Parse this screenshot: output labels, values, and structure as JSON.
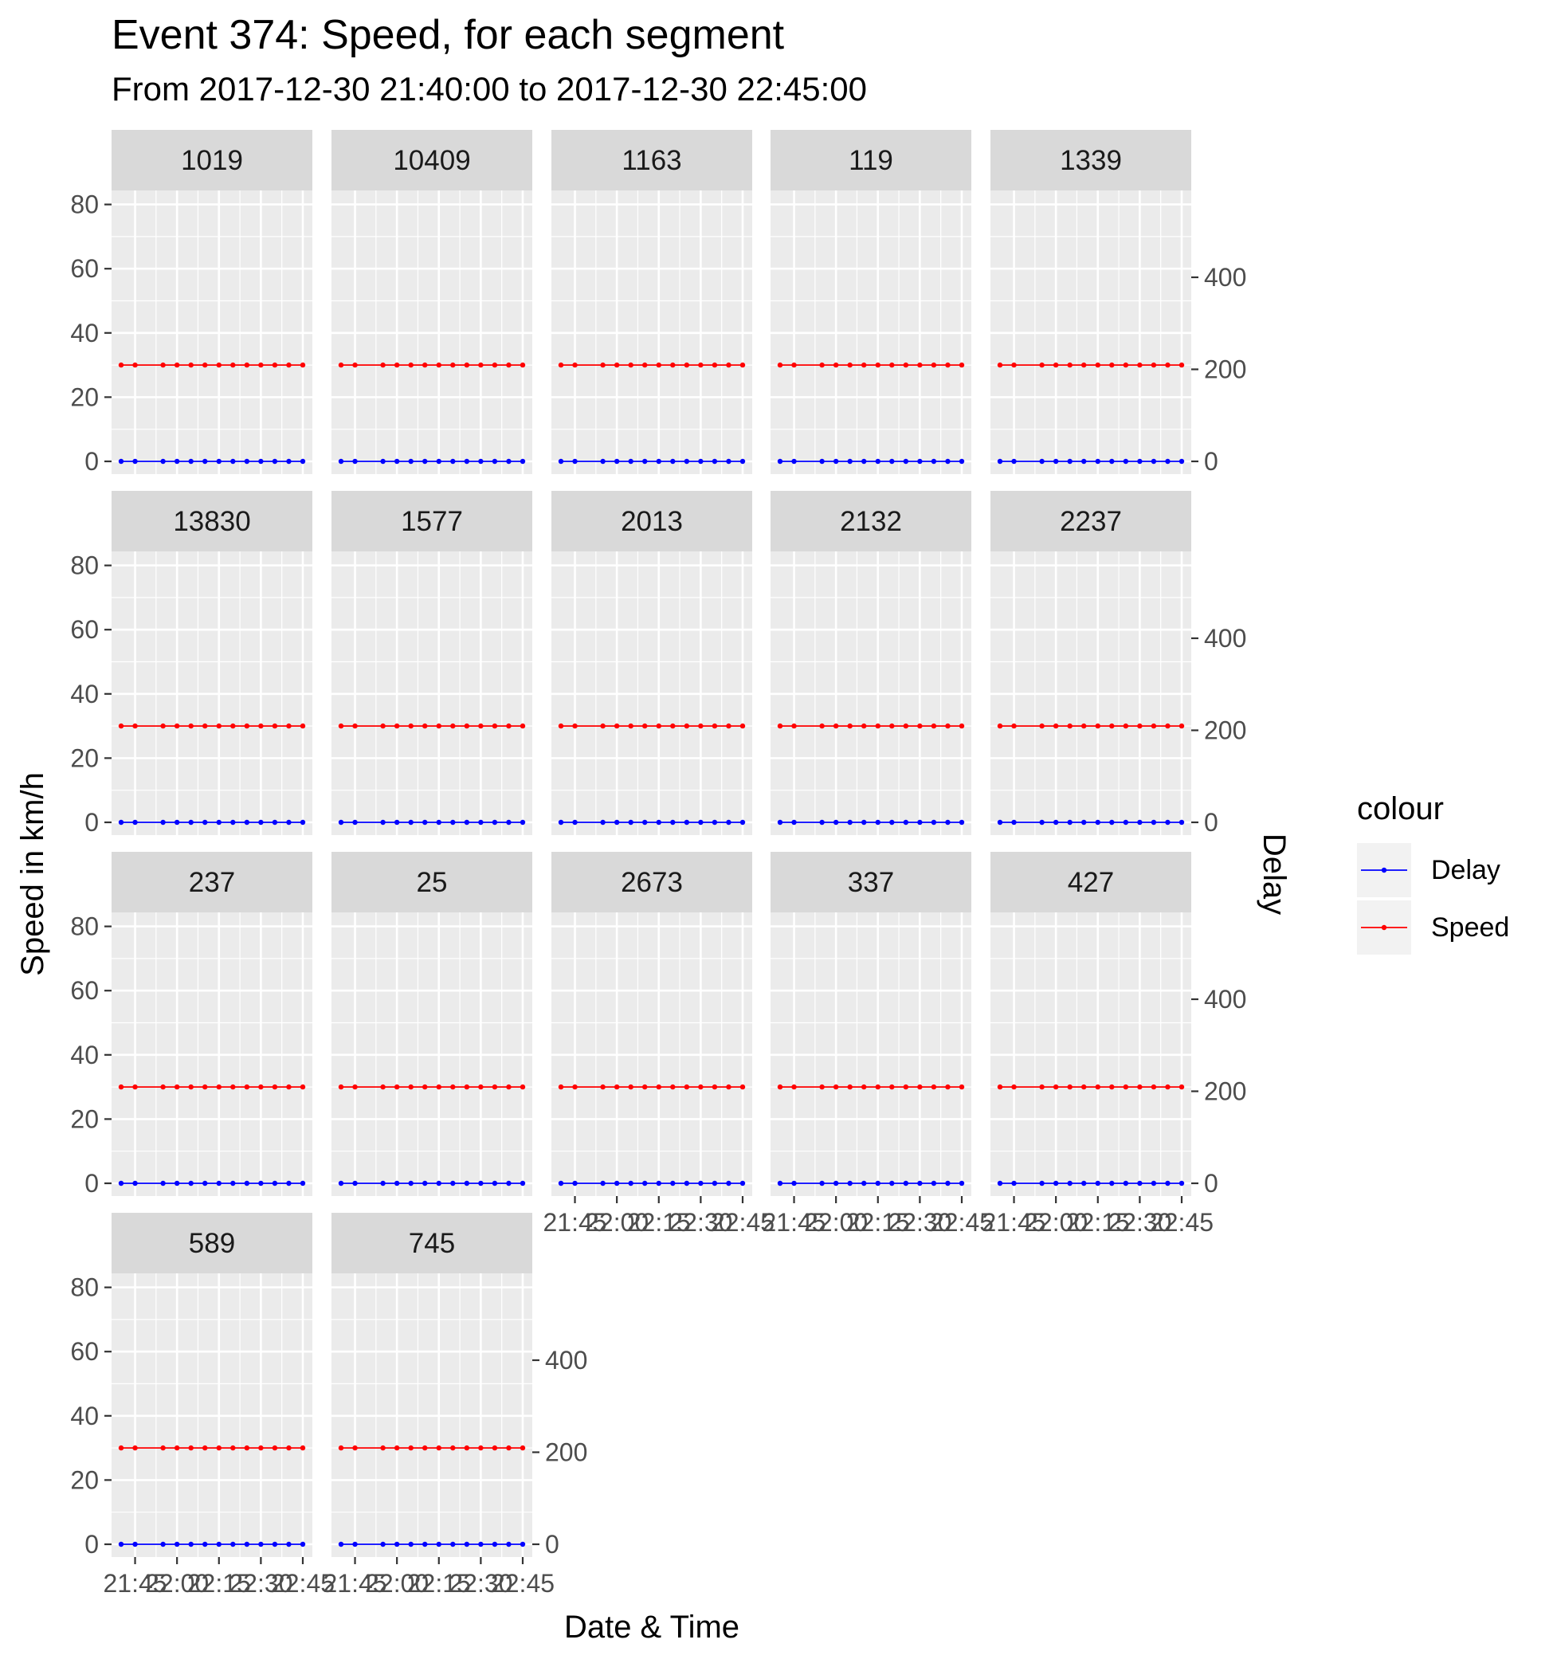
{
  "chart_data": {
    "type": "line",
    "title": "Event 374: Speed, for each segment",
    "subtitle": "From 2017-12-30 21:40:00 to 2017-12-30 22:45:00",
    "xlabel": "Date & Time",
    "ylabel": "Speed in km/h",
    "y2label": "Delay",
    "ylim": [
      0,
      85
    ],
    "y_ticks": [
      0,
      20,
      40,
      60,
      80
    ],
    "y2_ticks": [
      0,
      200,
      400
    ],
    "x": [
      "21:40",
      "21:45",
      "21:55",
      "22:00",
      "22:05",
      "22:10",
      "22:15",
      "22:20",
      "22:25",
      "22:30",
      "22:35",
      "22:40",
      "22:45"
    ],
    "x_tick_labels": [
      "21:45",
      "22:00",
      "22:15",
      "22:30",
      "22:45"
    ],
    "grid": true,
    "legend": {
      "title": "colour",
      "placement": "right",
      "entries": [
        {
          "name": "Delay",
          "color": "#0000ff"
        },
        {
          "name": "Speed",
          "color": "#ff0000"
        }
      ]
    },
    "facets": [
      "1019",
      "10409",
      "1163",
      "119",
      "1339",
      "13830",
      "1577",
      "2013",
      "2132",
      "2237",
      "237",
      "25",
      "2673",
      "337",
      "427",
      "589",
      "745"
    ],
    "series": [
      {
        "name": "Speed",
        "color": "#ff0000",
        "values": [
          30,
          30,
          30,
          30,
          30,
          30,
          30,
          30,
          30,
          30,
          30,
          30,
          30
        ]
      },
      {
        "name": "Delay",
        "color": "#0000ff",
        "values": [
          0,
          0,
          0,
          0,
          0,
          0,
          0,
          0,
          0,
          0,
          0,
          0,
          0
        ]
      }
    ]
  },
  "colors": {
    "panel_background": "#ebebeb",
    "strip_background": "#d9d9d9",
    "gridline": "#ffffff",
    "axis_text": "#4d4d4d"
  }
}
